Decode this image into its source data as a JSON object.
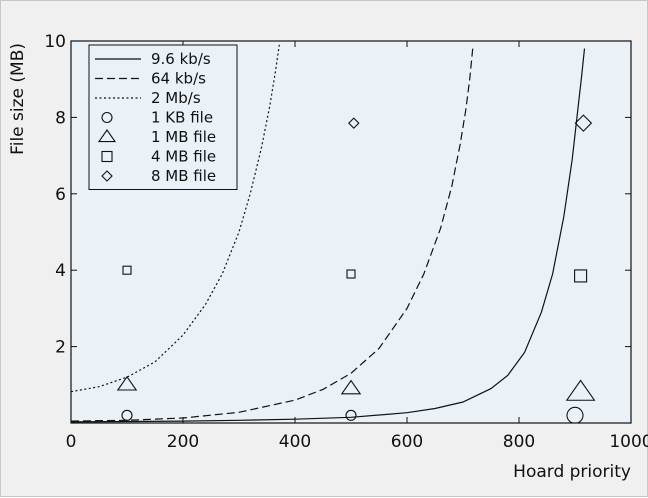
{
  "chart_data": {
    "type": "line",
    "title": "",
    "xlabel": "Hoard priority",
    "ylabel": "File size (MB)",
    "xlim": [
      0,
      1000
    ],
    "ylim": [
      0,
      10
    ],
    "x_ticks": [
      0,
      200,
      400,
      600,
      800,
      1000
    ],
    "y_ticks": [
      2,
      4,
      6,
      8,
      10
    ],
    "grid": false,
    "legend_position": "top-left",
    "plot_background": "#eaf2f8",
    "series": [
      {
        "name": "9.6 kb/s",
        "style": "solid",
        "kind": "line",
        "x": [
          0,
          100,
          200,
          300,
          400,
          500,
          600,
          650,
          700,
          750,
          780,
          810,
          840,
          860,
          880,
          895,
          905,
          912,
          917
        ],
        "y": [
          0.03,
          0.04,
          0.05,
          0.07,
          0.1,
          0.15,
          0.27,
          0.38,
          0.55,
          0.9,
          1.25,
          1.85,
          2.9,
          3.9,
          5.4,
          6.9,
          8.2,
          9.1,
          9.8
        ]
      },
      {
        "name": "64 kb/s",
        "style": "dashed",
        "kind": "line",
        "x": [
          0,
          100,
          200,
          300,
          400,
          450,
          500,
          550,
          600,
          630,
          660,
          680,
          695,
          705,
          712,
          718
        ],
        "y": [
          0.05,
          0.07,
          0.13,
          0.28,
          0.6,
          0.88,
          1.3,
          1.95,
          3.0,
          3.9,
          5.1,
          6.2,
          7.3,
          8.2,
          9.0,
          9.9
        ]
      },
      {
        "name": "2 Mb/s",
        "style": "dotted",
        "kind": "line",
        "x": [
          0,
          50,
          100,
          150,
          200,
          240,
          270,
          300,
          320,
          340,
          355,
          365,
          372
        ],
        "y": [
          0.82,
          0.95,
          1.2,
          1.6,
          2.3,
          3.1,
          3.9,
          5.0,
          6.0,
          7.2,
          8.3,
          9.2,
          9.9
        ]
      },
      {
        "name": "1 KB file",
        "marker": "circle",
        "kind": "scatter",
        "x": [
          100,
          500,
          900
        ],
        "y": [
          0.2,
          0.2,
          0.2
        ],
        "sizes": [
          5,
          5,
          8
        ]
      },
      {
        "name": "1 MB file",
        "marker": "triangle",
        "kind": "scatter",
        "x": [
          100,
          500,
          910
        ],
        "y": [
          1.0,
          0.9,
          0.8
        ],
        "sizes": [
          8,
          8,
          12
        ]
      },
      {
        "name": "4 MB file",
        "marker": "square",
        "kind": "scatter",
        "x": [
          100,
          500,
          910
        ],
        "y": [
          4.0,
          3.9,
          3.85
        ],
        "sizes": [
          4,
          4,
          6
        ]
      },
      {
        "name": "8 MB file",
        "marker": "diamond",
        "kind": "scatter",
        "x": [
          505,
          915
        ],
        "y": [
          7.85,
          7.85
        ],
        "sizes": [
          5,
          8
        ]
      }
    ]
  }
}
